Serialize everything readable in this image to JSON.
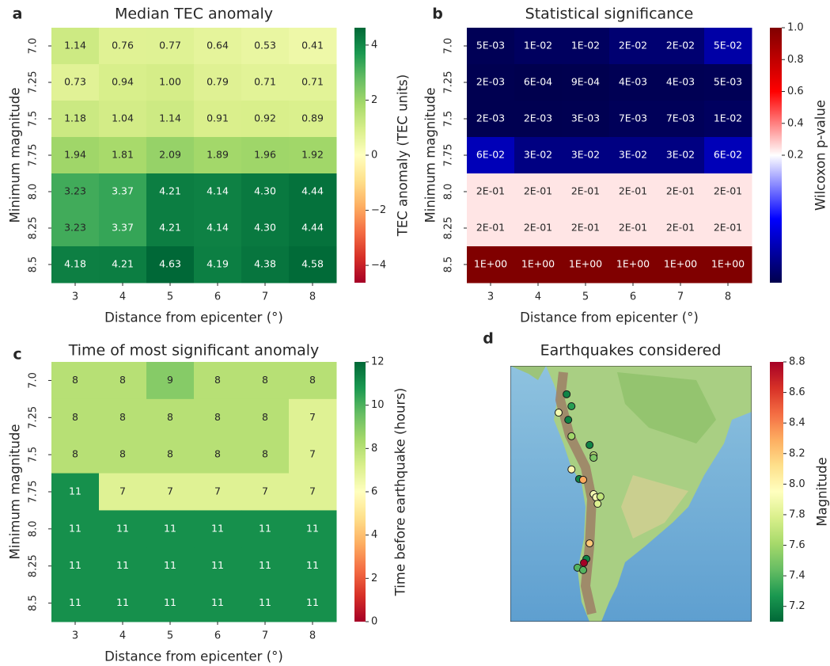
{
  "chart_data": [
    {
      "type": "heatmap",
      "panel": "a",
      "title": "Median TEC anomaly",
      "x_label": "Distance from epicenter (°)",
      "y_label": "Minimum magnitude",
      "columns": [
        3,
        4,
        5,
        6,
        7,
        8
      ],
      "rows": [
        "7.0",
        "7.25",
        "7.5",
        "7.75",
        "8.0",
        "8.25",
        "8.5"
      ],
      "values": [
        [
          1.14,
          0.76,
          0.77,
          0.64,
          0.53,
          0.41
        ],
        [
          0.73,
          0.94,
          1.0,
          0.79,
          0.71,
          0.71
        ],
        [
          1.18,
          1.04,
          1.14,
          0.91,
          0.92,
          0.89
        ],
        [
          1.94,
          1.81,
          2.09,
          1.89,
          1.96,
          1.92
        ],
        [
          3.23,
          3.37,
          4.21,
          4.14,
          4.3,
          4.44
        ],
        [
          3.23,
          3.37,
          4.21,
          4.14,
          4.3,
          4.44
        ],
        [
          4.18,
          4.21,
          4.63,
          4.19,
          4.38,
          4.58
        ]
      ],
      "value_labels": [
        [
          "1.14",
          "0.76",
          "0.77",
          "0.64",
          "0.53",
          "0.41"
        ],
        [
          "0.73",
          "0.94",
          "1.00",
          "0.79",
          "0.71",
          "0.71"
        ],
        [
          "1.18",
          "1.04",
          "1.14",
          "0.91",
          "0.92",
          "0.89"
        ],
        [
          "1.94",
          "1.81",
          "2.09",
          "1.89",
          "1.96",
          "1.92"
        ],
        [
          "3.23",
          "3.37",
          "4.21",
          "4.14",
          "4.30",
          "4.44"
        ],
        [
          "3.23",
          "3.37",
          "4.21",
          "4.14",
          "4.30",
          "4.44"
        ],
        [
          "4.18",
          "4.21",
          "4.63",
          "4.19",
          "4.38",
          "4.58"
        ]
      ],
      "colormap": "RdYlGn",
      "clim": [
        -4.63,
        4.63
      ],
      "cticks": [
        {
          "value": -4,
          "label": "−4"
        },
        {
          "value": -2,
          "label": "−2"
        },
        0,
        2,
        4
      ],
      "colorbar_label": "TEC anomaly (TEC units)"
    },
    {
      "type": "heatmap",
      "panel": "b",
      "title": "Statistical significance",
      "x_label": "Distance from epicenter (°)",
      "y_label": "Minimum magnitude",
      "columns": [
        3,
        4,
        5,
        6,
        7,
        8
      ],
      "rows": [
        "7.0",
        "7.25",
        "7.5",
        "7.75",
        "8.0",
        "8.25",
        "8.5"
      ],
      "values": [
        [
          0.005,
          0.01,
          0.01,
          0.02,
          0.02,
          0.05
        ],
        [
          0.002,
          0.0006,
          0.0009,
          0.004,
          0.004,
          0.005
        ],
        [
          0.002,
          0.002,
          0.003,
          0.007,
          0.007,
          0.01
        ],
        [
          0.06,
          0.03,
          0.03,
          0.03,
          0.03,
          0.06
        ],
        [
          0.24,
          0.24,
          0.24,
          0.24,
          0.24,
          0.24
        ],
        [
          0.24,
          0.24,
          0.24,
          0.24,
          0.24,
          0.24
        ],
        [
          1,
          1,
          1,
          1,
          1,
          1
        ]
      ],
      "value_labels": [
        [
          "5E-03",
          "1E-02",
          "1E-02",
          "2E-02",
          "2E-02",
          "5E-02"
        ],
        [
          "2E-03",
          "6E-04",
          "9E-04",
          "4E-03",
          "4E-03",
          "5E-03"
        ],
        [
          "2E-03",
          "2E-03",
          "3E-03",
          "7E-03",
          "7E-03",
          "1E-02"
        ],
        [
          "6E-02",
          "3E-02",
          "3E-02",
          "3E-02",
          "3E-02",
          "6E-02"
        ],
        [
          "2E-01",
          "2E-01",
          "2E-01",
          "2E-01",
          "2E-01",
          "2E-01"
        ],
        [
          "2E-01",
          "2E-01",
          "2E-01",
          "2E-01",
          "2E-01",
          "2E-01"
        ],
        [
          "1E+00",
          "1E+00",
          "1E+00",
          "1E+00",
          "1E+00",
          "1E+00"
        ]
      ],
      "colormap": "seismic",
      "clim": [
        0,
        1
      ],
      "ccenter": 0.2,
      "cticks": [
        0.2,
        0.4,
        0.6,
        0.8,
        {
          "value": 1,
          "label": "1.0"
        }
      ],
      "colorbar_label": "Wilcoxon p-value"
    },
    {
      "type": "heatmap",
      "panel": "c",
      "title": "Time of most significant anomaly",
      "x_label": "Distance from epicenter (°)",
      "y_label": "Minimum magnitude",
      "columns": [
        3,
        4,
        5,
        6,
        7,
        8
      ],
      "rows": [
        "7.0",
        "7.25",
        "7.5",
        "7.75",
        "8.0",
        "8.25",
        "8.5"
      ],
      "values": [
        [
          8,
          8,
          9,
          8,
          8,
          8
        ],
        [
          8,
          8,
          8,
          8,
          8,
          7
        ],
        [
          8,
          8,
          8,
          8,
          8,
          7
        ],
        [
          11,
          7,
          7,
          7,
          7,
          7
        ],
        [
          11,
          11,
          11,
          11,
          11,
          11
        ],
        [
          11,
          11,
          11,
          11,
          11,
          11
        ],
        [
          11,
          11,
          11,
          11,
          11,
          11
        ]
      ],
      "colormap": "RdYlGn",
      "clim": [
        0,
        12
      ],
      "cticks": [
        0,
        2,
        4,
        6,
        8,
        10,
        12
      ],
      "colorbar_label": "Time before earthquake (hours)"
    },
    {
      "type": "map",
      "panel": "d",
      "title": "Earthquakes considered",
      "xlim": [
        -90,
        -30
      ],
      "ylim": [
        -57,
        7
      ],
      "x": [
        -76.0,
        -74.8,
        -75.6,
        -78.0,
        -74.8,
        -70.3,
        -69.3,
        -69.3,
        -74.8,
        -72.9,
        -71.9,
        -69.3,
        -68.7,
        -67.6,
        -68.3,
        -70.3,
        -71.1,
        -71.7,
        -73.3,
        -71.9
      ],
      "y": [
        -0.1,
        -3.1,
        -6.5,
        -4.7,
        -10.6,
        -12.8,
        -15.4,
        -16.0,
        -18.9,
        -21.3,
        -21.5,
        -25.1,
        -25.9,
        -25.7,
        -27.5,
        -37.4,
        -41.3,
        -42.3,
        -43.5,
        -44.1
      ],
      "values": [
        7.2,
        7.3,
        7.2,
        7.9,
        7.6,
        7.2,
        7.7,
        7.5,
        8.0,
        7.2,
        8.3,
        7.9,
        7.9,
        7.7,
        7.8,
        8.2,
        7.2,
        8.8,
        7.4,
        7.4
      ],
      "colormap": "RdYlGn_r",
      "clim": [
        7.1,
        8.8
      ],
      "cticks": [
        7.2,
        7.4,
        7.6,
        7.8,
        {
          "value": 8,
          "label": "8.0"
        },
        8.2,
        8.4,
        8.6,
        8.8
      ],
      "colorbar_label": "Magnitude"
    }
  ]
}
